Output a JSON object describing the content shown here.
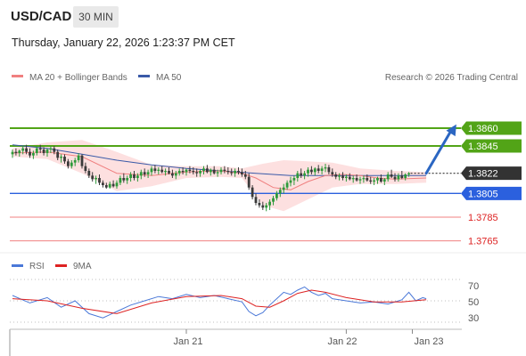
{
  "header": {
    "symbol": "USD/CAD",
    "timeframe": "30 MIN"
  },
  "datetime": "Thursday, January 22, 2026 1:23:37 PM CET",
  "legend": {
    "ma20_label": "MA 20 + Bollinger Bands",
    "ma50_label": "MA 50",
    "credit": "Research © 2026 Trading Central",
    "rsi_label": "RSI",
    "rsi_ma_label": "9MA"
  },
  "colors": {
    "up_candle": "#2e9a3a",
    "down_candle": "#3a3a3a",
    "resistance": "#52a417",
    "support": "#2b60de",
    "target": "#f08080",
    "ma20": "#f08080",
    "ma50": "#3a5aa8",
    "bollinger_fill": "#fde0e0",
    "rsi": "#4a78d8",
    "rsi_ma": "#dd2222",
    "arrow": "#2b66c2",
    "current": "#333333"
  },
  "price_labels": {
    "r2": "1.3860",
    "r1": "1.3845",
    "current": "1.3822",
    "s1": "1.3805",
    "t1": "1.3785",
    "t2": "1.3765"
  },
  "rsi_axis": {
    "high": "70",
    "mid": "50",
    "low": "30"
  },
  "x_labels": {
    "d1": "Jan 21",
    "d2": "Jan 22",
    "d3": "Jan 23"
  },
  "chart_data": {
    "type": "candlestick",
    "title": "USD/CAD",
    "timeframe": "30 MIN",
    "ylim": [
      1.3755,
      1.3875
    ],
    "y_ticks": [
      1.3765,
      1.3785,
      1.3805,
      1.3822,
      1.3845,
      1.386
    ],
    "key_levels": {
      "resistance": [
        1.386,
        1.3845
      ],
      "current": 1.3822,
      "support": [
        1.3805
      ],
      "targets": [
        1.3785,
        1.3765
      ]
    },
    "x_tick_labels": [
      "Jan 21",
      "Jan 22",
      "Jan 23"
    ],
    "x_tick_index": [
      50,
      96,
      115
    ],
    "forecast": {
      "from_index": 119,
      "from_price": 1.3822,
      "to_index": 127,
      "to_price": 1.386
    },
    "candles": [
      [
        1.3838,
        1.3842,
        1.3835,
        1.384
      ],
      [
        1.384,
        1.3843,
        1.3837,
        1.3839
      ],
      [
        1.3839,
        1.3842,
        1.3836,
        1.3841
      ],
      [
        1.3841,
        1.3845,
        1.3838,
        1.3843
      ],
      [
        1.3843,
        1.3846,
        1.3838,
        1.384
      ],
      [
        1.384,
        1.3843,
        1.3835,
        1.3837
      ],
      [
        1.3837,
        1.3841,
        1.3834,
        1.3839
      ],
      [
        1.3839,
        1.3845,
        1.3837,
        1.3843
      ],
      [
        1.3843,
        1.3846,
        1.3839,
        1.3842
      ],
      [
        1.3842,
        1.3844,
        1.3837,
        1.3839
      ],
      [
        1.3839,
        1.3843,
        1.3836,
        1.3842
      ],
      [
        1.3842,
        1.3845,
        1.3839,
        1.3843
      ],
      [
        1.3843,
        1.3845,
        1.3838,
        1.384
      ],
      [
        1.384,
        1.3842,
        1.3833,
        1.3835
      ],
      [
        1.3835,
        1.3838,
        1.3831,
        1.3836
      ],
      [
        1.3836,
        1.3838,
        1.383,
        1.3832
      ],
      [
        1.3832,
        1.3834,
        1.3826,
        1.3828
      ],
      [
        1.3828,
        1.3833,
        1.3826,
        1.3831
      ],
      [
        1.3831,
        1.3835,
        1.3828,
        1.3833
      ],
      [
        1.3833,
        1.3839,
        1.3831,
        1.3837
      ],
      [
        1.3837,
        1.3838,
        1.3826,
        1.3828
      ],
      [
        1.3828,
        1.3831,
        1.3822,
        1.3824
      ],
      [
        1.3824,
        1.3826,
        1.3818,
        1.382
      ],
      [
        1.382,
        1.3823,
        1.3815,
        1.3817
      ],
      [
        1.3817,
        1.382,
        1.3813,
        1.3818
      ],
      [
        1.3818,
        1.3821,
        1.3812,
        1.3814
      ],
      [
        1.3814,
        1.3816,
        1.381,
        1.3812
      ],
      [
        1.3812,
        1.3814,
        1.3809,
        1.381
      ],
      [
        1.381,
        1.3815,
        1.3809,
        1.3813
      ],
      [
        1.3813,
        1.3816,
        1.381,
        1.3811
      ],
      [
        1.3811,
        1.3816,
        1.3809,
        1.3814
      ],
      [
        1.3814,
        1.382,
        1.3812,
        1.3818
      ],
      [
        1.3818,
        1.3822,
        1.3814,
        1.3816
      ],
      [
        1.3816,
        1.382,
        1.3813,
        1.3818
      ],
      [
        1.3818,
        1.3823,
        1.3815,
        1.3821
      ],
      [
        1.3821,
        1.3824,
        1.3816,
        1.3818
      ],
      [
        1.3818,
        1.3822,
        1.3815,
        1.382
      ],
      [
        1.382,
        1.3825,
        1.3817,
        1.3823
      ],
      [
        1.3823,
        1.3826,
        1.3819,
        1.3821
      ],
      [
        1.3821,
        1.3825,
        1.3818,
        1.3823
      ],
      [
        1.3823,
        1.3828,
        1.382,
        1.3826
      ],
      [
        1.3826,
        1.3829,
        1.3822,
        1.3824
      ],
      [
        1.3824,
        1.3827,
        1.3821,
        1.3825
      ],
      [
        1.3825,
        1.3828,
        1.3822,
        1.3823
      ],
      [
        1.3823,
        1.3826,
        1.382,
        1.3824
      ],
      [
        1.3824,
        1.3827,
        1.3821,
        1.3822
      ],
      [
        1.3822,
        1.3825,
        1.3818,
        1.382
      ],
      [
        1.382,
        1.3824,
        1.3817,
        1.3822
      ],
      [
        1.3822,
        1.3826,
        1.382,
        1.3824
      ],
      [
        1.3824,
        1.3827,
        1.3821,
        1.3823
      ],
      [
        1.3823,
        1.3826,
        1.382,
        1.3825
      ],
      [
        1.3825,
        1.3828,
        1.3822,
        1.3824
      ],
      [
        1.3824,
        1.3827,
        1.3821,
        1.3823
      ],
      [
        1.3823,
        1.3826,
        1.3819,
        1.3822
      ],
      [
        1.3822,
        1.3825,
        1.3819,
        1.3824
      ],
      [
        1.3824,
        1.3828,
        1.3821,
        1.3826
      ],
      [
        1.3826,
        1.3829,
        1.3822,
        1.3823
      ],
      [
        1.3823,
        1.3826,
        1.382,
        1.3825
      ],
      [
        1.3825,
        1.3828,
        1.3821,
        1.3822
      ],
      [
        1.3822,
        1.3825,
        1.3819,
        1.3823
      ],
      [
        1.3823,
        1.3827,
        1.3821,
        1.3825
      ],
      [
        1.3825,
        1.3828,
        1.3822,
        1.3824
      ],
      [
        1.3824,
        1.3827,
        1.3821,
        1.3823
      ],
      [
        1.3823,
        1.3826,
        1.382,
        1.3822
      ],
      [
        1.3822,
        1.3826,
        1.3819,
        1.3824
      ],
      [
        1.3824,
        1.3827,
        1.3821,
        1.3823
      ],
      [
        1.3823,
        1.3826,
        1.3819,
        1.3821
      ],
      [
        1.3821,
        1.3824,
        1.3817,
        1.3819
      ],
      [
        1.3819,
        1.3822,
        1.3808,
        1.381
      ],
      [
        1.381,
        1.3812,
        1.38,
        1.3802
      ],
      [
        1.3802,
        1.3805,
        1.3795,
        1.3797
      ],
      [
        1.3797,
        1.38,
        1.3793,
        1.3795
      ],
      [
        1.3795,
        1.3798,
        1.3791,
        1.3793
      ],
      [
        1.3793,
        1.3797,
        1.379,
        1.3795
      ],
      [
        1.3795,
        1.38,
        1.3791,
        1.3798
      ],
      [
        1.3798,
        1.3803,
        1.3795,
        1.3801
      ],
      [
        1.3801,
        1.3807,
        1.3799,
        1.3805
      ],
      [
        1.3805,
        1.381,
        1.3802,
        1.3808
      ],
      [
        1.3808,
        1.3813,
        1.3805,
        1.381
      ],
      [
        1.381,
        1.3816,
        1.3808,
        1.3814
      ],
      [
        1.3814,
        1.3819,
        1.3811,
        1.3816
      ],
      [
        1.3816,
        1.382,
        1.3812,
        1.3818
      ],
      [
        1.3818,
        1.3824,
        1.3815,
        1.3822
      ],
      [
        1.3822,
        1.3826,
        1.3818,
        1.382
      ],
      [
        1.382,
        1.3824,
        1.3817,
        1.3822
      ],
      [
        1.3822,
        1.3827,
        1.3819,
        1.3825
      ],
      [
        1.3825,
        1.3828,
        1.3821,
        1.3823
      ],
      [
        1.3823,
        1.3827,
        1.382,
        1.3826
      ],
      [
        1.3826,
        1.3829,
        1.3822,
        1.3824
      ],
      [
        1.3824,
        1.3828,
        1.3821,
        1.3826
      ],
      [
        1.3826,
        1.383,
        1.3823,
        1.3827
      ],
      [
        1.3827,
        1.3829,
        1.3821,
        1.3823
      ],
      [
        1.3823,
        1.3826,
        1.3819,
        1.3821
      ],
      [
        1.3821,
        1.3823,
        1.3817,
        1.3819
      ],
      [
        1.3819,
        1.3822,
        1.3816,
        1.382
      ],
      [
        1.382,
        1.3823,
        1.3816,
        1.3818
      ],
      [
        1.3818,
        1.3821,
        1.3815,
        1.3819
      ],
      [
        1.3819,
        1.3822,
        1.3816,
        1.3817
      ],
      [
        1.3817,
        1.382,
        1.3814,
        1.3818
      ],
      [
        1.3818,
        1.3821,
        1.3815,
        1.3816
      ],
      [
        1.3816,
        1.3819,
        1.3813,
        1.3817
      ],
      [
        1.3817,
        1.382,
        1.3814,
        1.3818
      ],
      [
        1.3818,
        1.3821,
        1.3815,
        1.3816
      ],
      [
        1.3816,
        1.3819,
        1.3813,
        1.3815
      ],
      [
        1.3815,
        1.3818,
        1.3812,
        1.3816
      ],
      [
        1.3816,
        1.3819,
        1.3813,
        1.3818
      ],
      [
        1.3818,
        1.3821,
        1.3814,
        1.3815
      ],
      [
        1.3815,
        1.3818,
        1.3812,
        1.3817
      ],
      [
        1.3817,
        1.3823,
        1.3815,
        1.3821
      ],
      [
        1.3821,
        1.3825,
        1.3818,
        1.3819
      ],
      [
        1.3819,
        1.3822,
        1.3815,
        1.3817
      ],
      [
        1.3817,
        1.3822,
        1.3815,
        1.382
      ],
      [
        1.382,
        1.3824,
        1.3817,
        1.3818
      ],
      [
        1.3818,
        1.3822,
        1.3816,
        1.3821
      ],
      [
        1.3821,
        1.3823,
        1.3819,
        1.3822
      ]
    ],
    "ma20": [
      [
        0,
        1.3839
      ],
      [
        10,
        1.384
      ],
      [
        20,
        1.3836
      ],
      [
        30,
        1.3822
      ],
      [
        40,
        1.382
      ],
      [
        50,
        1.3823
      ],
      [
        60,
        1.3824
      ],
      [
        66,
        1.3822
      ],
      [
        70,
        1.3818
      ],
      [
        75,
        1.381
      ],
      [
        80,
        1.3808
      ],
      [
        85,
        1.3815
      ],
      [
        90,
        1.382
      ],
      [
        95,
        1.3821
      ],
      [
        100,
        1.382
      ],
      [
        105,
        1.3818
      ],
      [
        110,
        1.3817
      ],
      [
        119,
        1.3818
      ]
    ],
    "ma50": [
      [
        0,
        1.3846
      ],
      [
        10,
        1.3843
      ],
      [
        20,
        1.3838
      ],
      [
        30,
        1.3833
      ],
      [
        40,
        1.3829
      ],
      [
        50,
        1.3826
      ],
      [
        60,
        1.3824
      ],
      [
        70,
        1.3822
      ],
      [
        80,
        1.382
      ],
      [
        90,
        1.382
      ],
      [
        100,
        1.382
      ],
      [
        110,
        1.382
      ],
      [
        119,
        1.382
      ]
    ],
    "bollinger_upper": [
      [
        0,
        1.3843
      ],
      [
        10,
        1.3848
      ],
      [
        20,
        1.385
      ],
      [
        30,
        1.384
      ],
      [
        40,
        1.3829
      ],
      [
        50,
        1.3828
      ],
      [
        60,
        1.3828
      ],
      [
        66,
        1.3826
      ],
      [
        72,
        1.383
      ],
      [
        78,
        1.3833
      ],
      [
        85,
        1.3832
      ],
      [
        92,
        1.3831
      ],
      [
        100,
        1.3826
      ],
      [
        110,
        1.3824
      ],
      [
        119,
        1.3823
      ]
    ],
    "bollinger_lower": [
      [
        0,
        1.3836
      ],
      [
        10,
        1.3834
      ],
      [
        20,
        1.3822
      ],
      [
        30,
        1.3807
      ],
      [
        40,
        1.3811
      ],
      [
        50,
        1.3818
      ],
      [
        60,
        1.3819
      ],
      [
        66,
        1.3818
      ],
      [
        72,
        1.3795
      ],
      [
        78,
        1.379
      ],
      [
        85,
        1.38
      ],
      [
        92,
        1.381
      ],
      [
        100,
        1.3813
      ],
      [
        110,
        1.3813
      ],
      [
        119,
        1.3814
      ]
    ],
    "rsi": {
      "ylim": [
        20,
        80
      ],
      "ticks": [
        30,
        50,
        70
      ],
      "values": [
        [
          0,
          55
        ],
        [
          5,
          48
        ],
        [
          10,
          53
        ],
        [
          14,
          44
        ],
        [
          18,
          50
        ],
        [
          22,
          38
        ],
        [
          26,
          34
        ],
        [
          30,
          40
        ],
        [
          34,
          46
        ],
        [
          38,
          50
        ],
        [
          42,
          54
        ],
        [
          46,
          52
        ],
        [
          50,
          56
        ],
        [
          54,
          53
        ],
        [
          58,
          55
        ],
        [
          62,
          52
        ],
        [
          66,
          49
        ],
        [
          68,
          40
        ],
        [
          70,
          36
        ],
        [
          72,
          39
        ],
        [
          74,
          46
        ],
        [
          76,
          52
        ],
        [
          78,
          58
        ],
        [
          80,
          56
        ],
        [
          82,
          60
        ],
        [
          84,
          63
        ],
        [
          86,
          58
        ],
        [
          88,
          55
        ],
        [
          90,
          57
        ],
        [
          92,
          52
        ],
        [
          96,
          50
        ],
        [
          100,
          48
        ],
        [
          104,
          49
        ],
        [
          108,
          47
        ],
        [
          112,
          51
        ],
        [
          114,
          58
        ],
        [
          116,
          50
        ],
        [
          118,
          53
        ],
        [
          119,
          52
        ]
      ],
      "ma9": [
        [
          0,
          52
        ],
        [
          10,
          50
        ],
        [
          20,
          43
        ],
        [
          30,
          38
        ],
        [
          40,
          48
        ],
        [
          50,
          54
        ],
        [
          60,
          55
        ],
        [
          66,
          52
        ],
        [
          70,
          45
        ],
        [
          74,
          44
        ],
        [
          78,
          50
        ],
        [
          82,
          57
        ],
        [
          86,
          60
        ],
        [
          90,
          58
        ],
        [
          96,
          53
        ],
        [
          104,
          49
        ],
        [
          112,
          49
        ],
        [
          119,
          51
        ]
      ]
    }
  }
}
